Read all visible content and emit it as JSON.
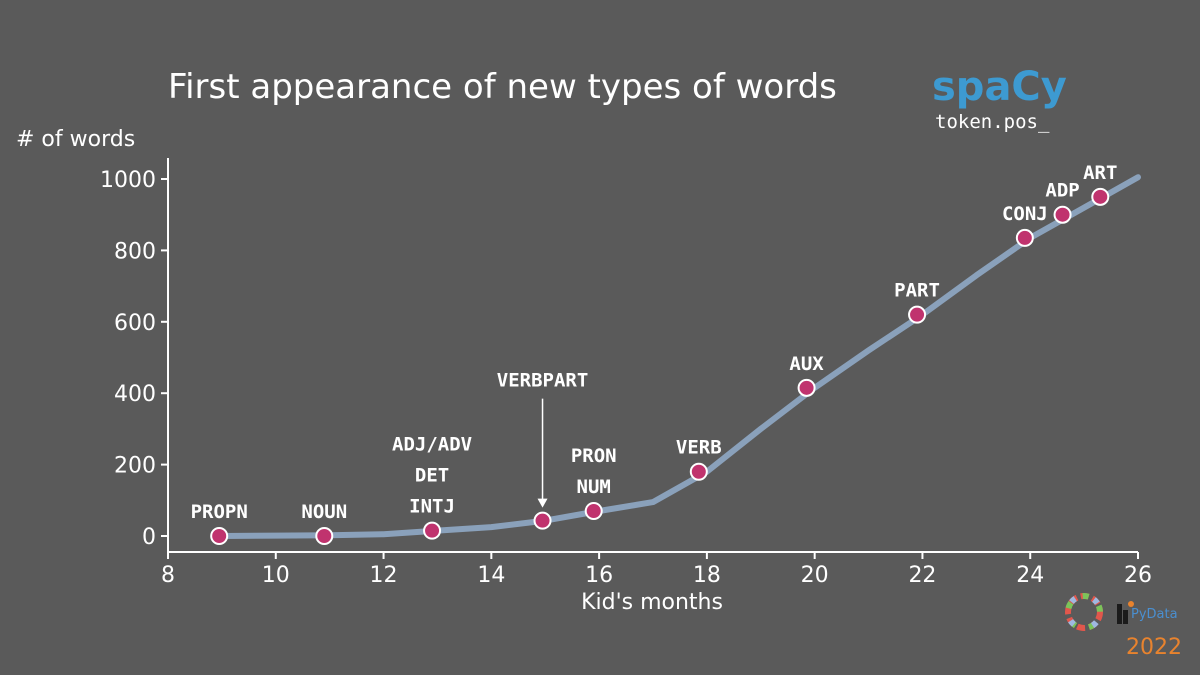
{
  "chart_data": {
    "type": "line",
    "title": "First appearance of new types of words",
    "brand": "spaCy",
    "subtitle": "token.pos_",
    "xlabel": "Kid's months",
    "ylabel": "# of words",
    "xlim": [
      8,
      26
    ],
    "ylim": [
      -50,
      1060
    ],
    "x_ticks": [
      8,
      10,
      12,
      14,
      16,
      18,
      20,
      22,
      24,
      26
    ],
    "y_ticks": [
      0,
      200,
      400,
      600,
      800,
      1000
    ],
    "grid": false,
    "series": [
      {
        "color": "#8aa1bb",
        "x": [
          9,
          10,
          11,
          12,
          13,
          14,
          15,
          16,
          17,
          18,
          19,
          20,
          21,
          22,
          23,
          24,
          25,
          26
        ],
        "y": [
          0,
          1,
          2,
          5,
          15,
          25,
          43,
          70,
          95,
          180,
          300,
          415,
          520,
          620,
          730,
          835,
          920,
          1005
        ]
      }
    ],
    "points": [
      {
        "x": 8.95,
        "y": 0,
        "labels": [
          "PROPN"
        ]
      },
      {
        "x": 10.9,
        "y": 0,
        "labels": [
          "NOUN"
        ]
      },
      {
        "x": 12.9,
        "y": 15,
        "labels": [
          "ADJ/ADV",
          "DET",
          "INTJ"
        ]
      },
      {
        "x": 14.95,
        "y": 43,
        "labels": [
          "VERBPART"
        ],
        "arrow": true
      },
      {
        "x": 15.9,
        "y": 70,
        "labels": [
          "PRON",
          "NUM"
        ]
      },
      {
        "x": 17.85,
        "y": 180,
        "labels": [
          "VERB"
        ]
      },
      {
        "x": 19.85,
        "y": 415,
        "labels": [
          "AUX"
        ]
      },
      {
        "x": 21.9,
        "y": 620,
        "labels": [
          "PART"
        ]
      },
      {
        "x": 23.9,
        "y": 835,
        "labels": [
          "CONJ"
        ]
      },
      {
        "x": 24.6,
        "y": 900,
        "labels": [
          "ADP"
        ]
      },
      {
        "x": 25.3,
        "y": 950,
        "labels": [
          "ART"
        ]
      }
    ],
    "point_color": "#c0336e"
  },
  "footer": {
    "year": "2022",
    "logo_text": "PyData",
    "year_color": "#e8832e"
  }
}
